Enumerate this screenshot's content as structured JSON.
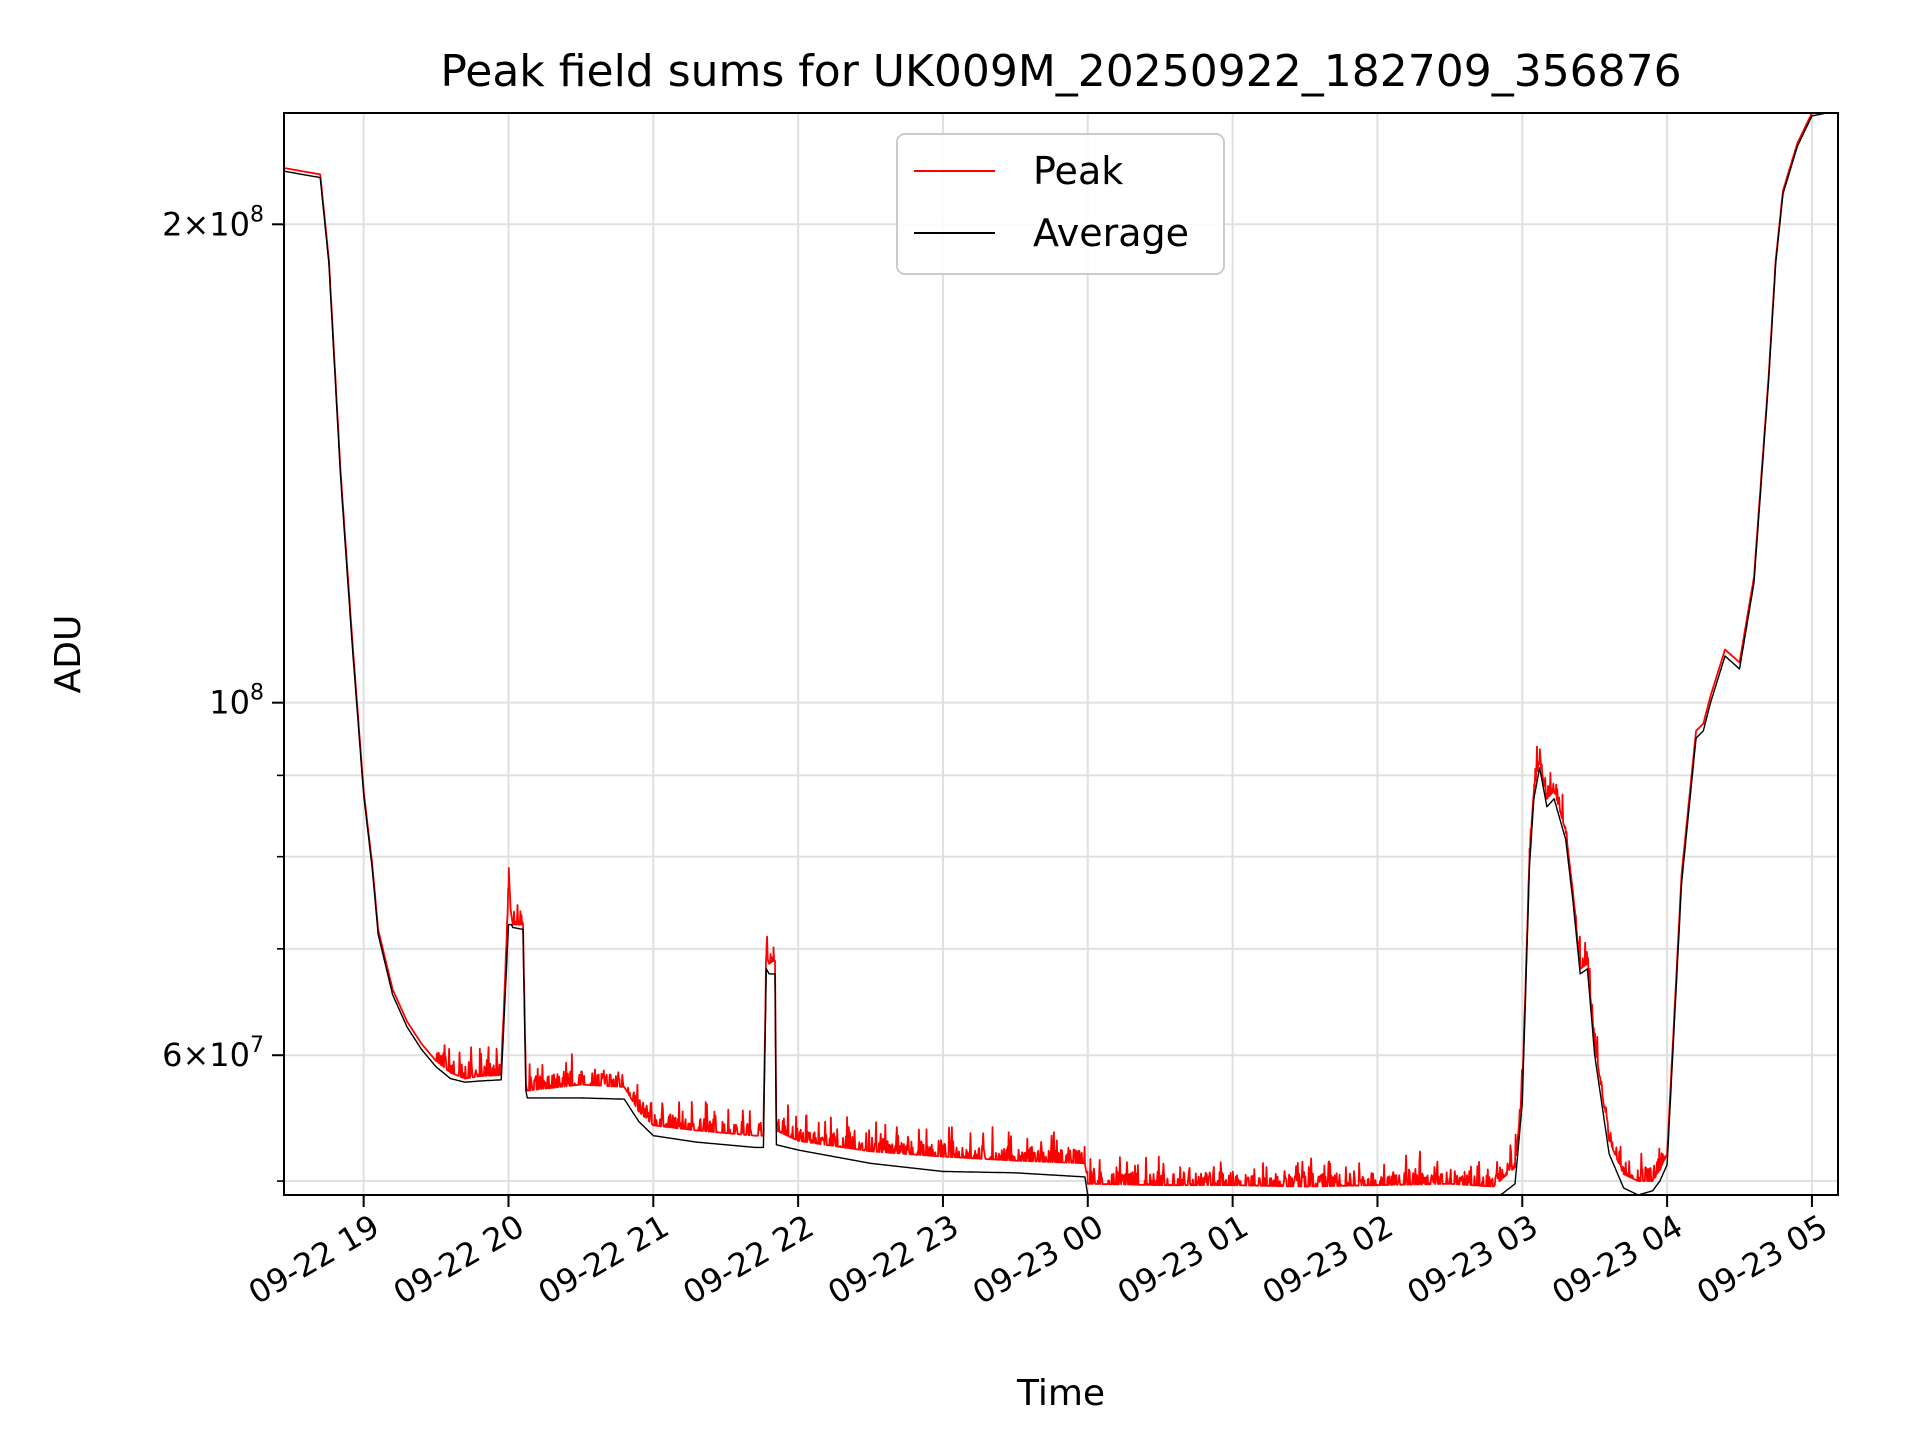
{
  "chart_data": {
    "type": "line",
    "title": "Peak field sums for UK009M_20250922_182709_356876",
    "xlabel": "Time",
    "ylabel": "ADU",
    "yscale": "log",
    "ylim": [
      49000000,
      235000000
    ],
    "xlim_hours": [
      18.45,
      29.18
    ],
    "grid": true,
    "legend_loc": "upper center",
    "x_ticks": [
      {
        "hour": 19,
        "label": "09-22 19"
      },
      {
        "hour": 20,
        "label": "09-22 20"
      },
      {
        "hour": 21,
        "label": "09-22 21"
      },
      {
        "hour": 22,
        "label": "09-22 22"
      },
      {
        "hour": 23,
        "label": "09-22 23"
      },
      {
        "hour": 24,
        "label": "09-23 00"
      },
      {
        "hour": 25,
        "label": "09-23 01"
      },
      {
        "hour": 26,
        "label": "09-23 02"
      },
      {
        "hour": 27,
        "label": "09-23 03"
      },
      {
        "hour": 28,
        "label": "09-23 04"
      },
      {
        "hour": 29,
        "label": "09-23 05"
      }
    ],
    "y_major_ticks": [
      {
        "value": 60000000,
        "base": "6",
        "exp": "7"
      },
      {
        "value": 100000000,
        "base": "",
        "exp": "8"
      },
      {
        "value": 200000000,
        "base": "2",
        "exp": "8"
      }
    ],
    "y_minor_ticks": [
      50000000,
      70000000,
      80000000,
      90000000
    ],
    "series": [
      {
        "name": "Peak",
        "color": "#ff0000",
        "x_hours": [
          18.45,
          18.7,
          18.76,
          18.84,
          18.92,
          19.0,
          19.06,
          19.1,
          19.2,
          19.3,
          19.4,
          19.5,
          19.6,
          19.7,
          19.8,
          19.95,
          20.0,
          20.02,
          20.03,
          20.1,
          20.12,
          20.13,
          20.5,
          20.8,
          20.9,
          21.0,
          21.3,
          21.5,
          21.7,
          21.76,
          21.78,
          21.8,
          21.83,
          21.84,
          21.85,
          22.0,
          22.5,
          23.0,
          23.5,
          23.98,
          24.0,
          24.5,
          25.0,
          25.5,
          26.0,
          26.5,
          26.8,
          26.95,
          27.0,
          27.05,
          27.08,
          27.12,
          27.17,
          27.22,
          27.3,
          27.35,
          27.4,
          27.45,
          27.5,
          27.6,
          27.7,
          27.8,
          27.9,
          27.95,
          28.0,
          28.1,
          28.2,
          28.25,
          28.3,
          28.4,
          28.5,
          28.6,
          28.7,
          28.75,
          28.8,
          28.9,
          29.0,
          29.1,
          29.18
        ],
        "values": [
          217000000,
          215000000,
          190000000,
          140000000,
          110000000,
          88000000,
          79000000,
          72000000,
          66000000,
          63000000,
          61000000,
          59500000,
          58500000,
          58000000,
          58200000,
          58300000,
          76000000,
          73500000,
          72500000,
          72500000,
          57500000,
          57000000,
          57500000,
          57300000,
          55300000,
          54200000,
          53800000,
          53600000,
          53400000,
          53400000,
          69300000,
          68500000,
          68800000,
          68800000,
          53800000,
          53000000,
          52200000,
          51800000,
          51500000,
          51300000,
          49800000,
          49700000,
          49700000,
          49600000,
          49700000,
          49800000,
          49600000,
          51000000,
          57000000,
          80000000,
          88000000,
          92000000,
          87000000,
          88000000,
          83000000,
          76000000,
          68000000,
          68500000,
          61000000,
          53000000,
          50500000,
          50000000,
          50000000,
          50800000,
          52000000,
          78000000,
          96000000,
          97000000,
          101000000,
          108000000,
          106000000,
          120000000,
          160000000,
          190000000,
          210000000,
          225000000,
          235000000,
          236000000,
          236000000
        ]
      },
      {
        "name": "Average",
        "color": "#000000",
        "x_hours": [
          18.45,
          18.7,
          18.76,
          18.84,
          18.92,
          19.0,
          19.06,
          19.1,
          19.2,
          19.3,
          19.4,
          19.5,
          19.6,
          19.7,
          19.8,
          19.95,
          20.0,
          20.02,
          20.03,
          20.1,
          20.12,
          20.13,
          20.5,
          20.8,
          20.9,
          21.0,
          21.3,
          21.5,
          21.7,
          21.76,
          21.78,
          21.8,
          21.83,
          21.84,
          21.85,
          22.0,
          22.5,
          23.0,
          23.5,
          23.98,
          24.0,
          24.5,
          25.0,
          25.5,
          26.0,
          26.5,
          26.8,
          26.95,
          27.0,
          27.05,
          27.08,
          27.12,
          27.17,
          27.22,
          27.3,
          27.35,
          27.4,
          27.45,
          27.5,
          27.6,
          27.7,
          27.8,
          27.9,
          27.95,
          28.0,
          28.1,
          28.2,
          28.25,
          28.3,
          28.4,
          28.5,
          28.6,
          28.7,
          28.75,
          28.8,
          28.9,
          29.0,
          29.1,
          29.18
        ],
        "values": [
          216000000,
          214000000,
          189000000,
          139000000,
          109000000,
          87500000,
          78500000,
          71500000,
          65500000,
          62500000,
          60500000,
          59000000,
          58000000,
          57700000,
          57800000,
          57900000,
          72500000,
          72500000,
          72200000,
          72000000,
          57000000,
          56400000,
          56400000,
          56300000,
          54500000,
          53400000,
          52900000,
          52700000,
          52500000,
          52500000,
          68000000,
          67500000,
          67500000,
          67500000,
          52700000,
          52300000,
          51300000,
          50700000,
          50600000,
          50300000,
          49000000,
          48700000,
          48900000,
          48800000,
          48900000,
          48700000,
          48600000,
          49800000,
          56000000,
          79000000,
          87000000,
          91000000,
          86000000,
          87000000,
          82000000,
          75000000,
          67500000,
          68000000,
          60000000,
          52000000,
          49500000,
          49000000,
          49300000,
          50000000,
          51200000,
          77000000,
          95000000,
          96000000,
          100000000,
          107000000,
          105000000,
          119000000,
          159000000,
          189000000,
          209000000,
          224000000,
          234000000,
          235000000,
          235000000
        ]
      }
    ]
  }
}
